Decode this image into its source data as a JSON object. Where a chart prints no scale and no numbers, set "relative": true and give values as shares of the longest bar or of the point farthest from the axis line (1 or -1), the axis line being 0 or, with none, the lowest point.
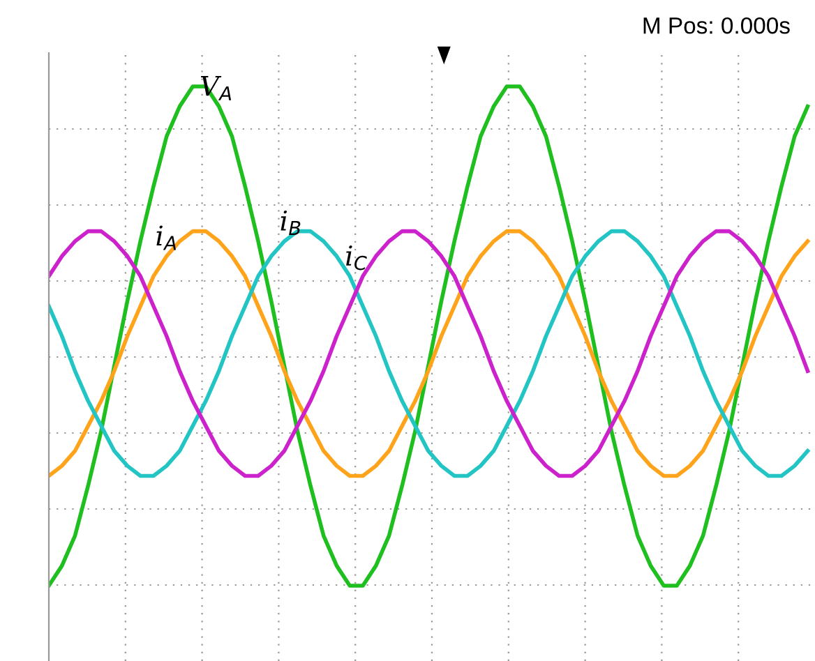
{
  "chart_data": {
    "type": "line",
    "relative": true,
    "grid": true,
    "legend": false,
    "marker": "none",
    "line_style": "solid",
    "categories": [
      null,
      null,
      null,
      null,
      null,
      null,
      null,
      null,
      null,
      null,
      null,
      null,
      null,
      null,
      null,
      null,
      null,
      null,
      null,
      null,
      null,
      null,
      null,
      null,
      null,
      null,
      null,
      null,
      null,
      null,
      null,
      null,
      null,
      null,
      null,
      null,
      null,
      null,
      null,
      null,
      null,
      null,
      null,
      null,
      null,
      null,
      null,
      null,
      null,
      null,
      null,
      null,
      null,
      null,
      null,
      null,
      null,
      null,
      null
    ],
    "annotations": [
      "M Pos: 0.000s"
    ],
    "series": [
      {
        "name": "V$_{A}$",
        "color": "#1fbf1f",
        "values": [
          0.0,
          0.04,
          0.1,
          0.2,
          0.31,
          0.44,
          0.57,
          0.69,
          0.8,
          0.9,
          0.96,
          1.0,
          1.0,
          0.96,
          0.9,
          0.8,
          0.69,
          0.57,
          0.44,
          0.31,
          0.2,
          0.1,
          0.04,
          0.0,
          0.0,
          0.04,
          0.1,
          0.2,
          0.31,
          0.44,
          0.57,
          0.69,
          0.8,
          0.9,
          0.96,
          1.0,
          1.0,
          0.96,
          0.9,
          0.8,
          0.69,
          0.57,
          0.44,
          0.31,
          0.2,
          0.1,
          0.04,
          0.0,
          0.0,
          0.04,
          0.1,
          0.2,
          0.31,
          0.44,
          0.57,
          0.69,
          0.8,
          0.9,
          0.96
        ]
      },
      {
        "name": "i$_{A}$",
        "color": "#ffa31a",
        "values": [
          0.22,
          0.24,
          0.27,
          0.32,
          0.37,
          0.43,
          0.5,
          0.56,
          0.62,
          0.66,
          0.69,
          0.71,
          0.71,
          0.69,
          0.66,
          0.62,
          0.56,
          0.5,
          0.43,
          0.37,
          0.32,
          0.27,
          0.24,
          0.22,
          0.22,
          0.24,
          0.27,
          0.32,
          0.37,
          0.43,
          0.5,
          0.56,
          0.62,
          0.66,
          0.69,
          0.71,
          0.71,
          0.69,
          0.66,
          0.62,
          0.56,
          0.5,
          0.43,
          0.37,
          0.32,
          0.27,
          0.24,
          0.22,
          0.22,
          0.24,
          0.27,
          0.32,
          0.37,
          0.43,
          0.5,
          0.56,
          0.62,
          0.66,
          0.69
        ]
      },
      {
        "name": "i$_{B}$",
        "color": "#22c4c4",
        "values": [
          0.56,
          0.5,
          0.43,
          0.37,
          0.32,
          0.27,
          0.24,
          0.22,
          0.22,
          0.24,
          0.27,
          0.32,
          0.37,
          0.43,
          0.5,
          0.56,
          0.62,
          0.66,
          0.69,
          0.71,
          0.71,
          0.69,
          0.66,
          0.62,
          0.56,
          0.5,
          0.43,
          0.37,
          0.32,
          0.27,
          0.24,
          0.22,
          0.22,
          0.24,
          0.27,
          0.32,
          0.37,
          0.43,
          0.5,
          0.56,
          0.62,
          0.66,
          0.69,
          0.71,
          0.71,
          0.69,
          0.66,
          0.62,
          0.56,
          0.5,
          0.43,
          0.37,
          0.32,
          0.27,
          0.24,
          0.22,
          0.22,
          0.24,
          0.27
        ]
      },
      {
        "name": "i$_{C}$",
        "color": "#cc22cc",
        "values": [
          0.62,
          0.66,
          0.69,
          0.71,
          0.71,
          0.69,
          0.66,
          0.62,
          0.56,
          0.5,
          0.43,
          0.37,
          0.32,
          0.27,
          0.24,
          0.22,
          0.22,
          0.24,
          0.27,
          0.32,
          0.37,
          0.43,
          0.5,
          0.56,
          0.62,
          0.66,
          0.69,
          0.71,
          0.71,
          0.69,
          0.66,
          0.62,
          0.56,
          0.5,
          0.43,
          0.37,
          0.32,
          0.27,
          0.24,
          0.22,
          0.22,
          0.24,
          0.27,
          0.32,
          0.37,
          0.43,
          0.5,
          0.56,
          0.62,
          0.66,
          0.69,
          0.71,
          0.71,
          0.69,
          0.66,
          0.62,
          0.56,
          0.5,
          0.43
        ]
      }
    ]
  }
}
